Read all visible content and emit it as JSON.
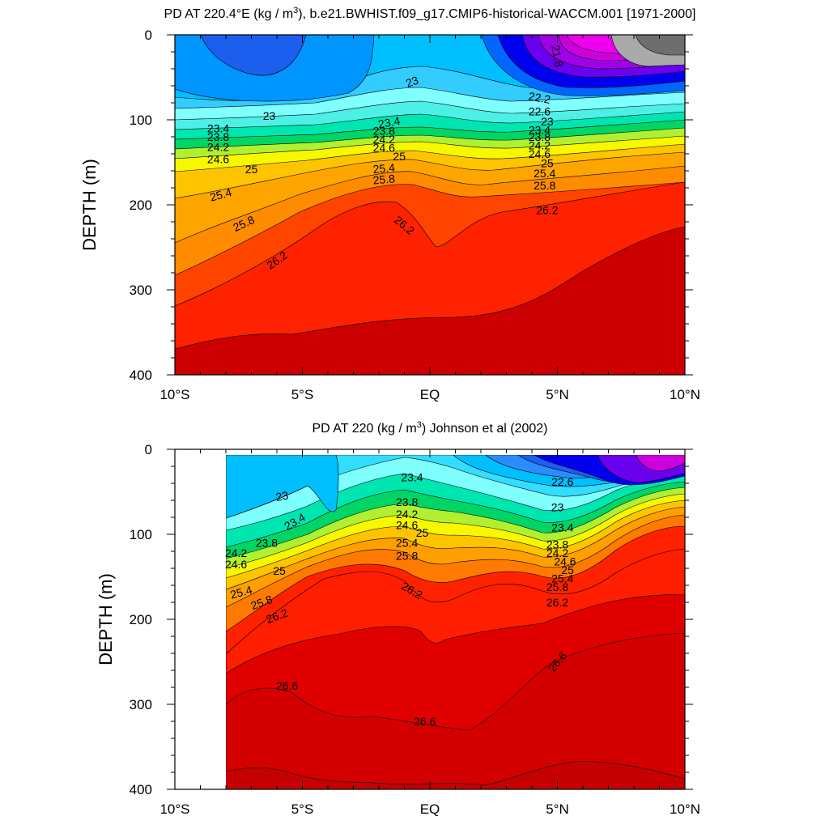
{
  "chart_data": [
    {
      "type": "contour",
      "title_main": "PD AT 220.4°E (kg / m",
      "title_sup": "3",
      "title_rest": "), b.e21.BWHIST.f09_g17.CMIP6-historical-WACCM.001 [1971-2000]",
      "ylabel": "DEPTH (m)",
      "xlabel": "",
      "x_tick_labels": [
        "10°S",
        "5°S",
        "EQ",
        "5°N",
        "10°N"
      ],
      "x_tick_values": [
        -10,
        -5,
        0,
        5,
        10
      ],
      "y_tick_labels": [
        "0",
        "100",
        "200",
        "300",
        "400"
      ],
      "y_tick_values": [
        0,
        100,
        200,
        300,
        400
      ],
      "xlim": [
        -10,
        10
      ],
      "ylim": [
        0,
        400
      ],
      "y_inverted": true,
      "data_xlim": [
        -10,
        10
      ],
      "contour_interval": 0.2,
      "palette": [
        "#a9a9a9",
        "#e000e0",
        "#9900e6",
        "#1c5eed",
        "#00bfff",
        "#80ffff",
        "#00d566",
        "#f7f700",
        "#ff9f00",
        "#ff2200",
        "#cc0000"
      ],
      "contour_labels": [
        {
          "text": "21.8",
          "x": 5.0,
          "y": 25,
          "rot": 80
        },
        {
          "text": "23",
          "x": -0.7,
          "y": 55,
          "rot": -20
        },
        {
          "text": "23",
          "x": -6.3,
          "y": 95,
          "rot": 0
        },
        {
          "text": "23.4",
          "x": -8.3,
          "y": 110,
          "rot": 0
        },
        {
          "text": "23.8",
          "x": -8.3,
          "y": 120,
          "rot": 0
        },
        {
          "text": "24.2",
          "x": -8.3,
          "y": 132,
          "rot": 0
        },
        {
          "text": "24.6",
          "x": -8.3,
          "y": 146,
          "rot": 0
        },
        {
          "text": "25",
          "x": -7.0,
          "y": 158,
          "rot": 0
        },
        {
          "text": "25.4",
          "x": -8.2,
          "y": 188,
          "rot": -15
        },
        {
          "text": "25.8",
          "x": -7.3,
          "y": 222,
          "rot": -25
        },
        {
          "text": "26.2",
          "x": -6.0,
          "y": 265,
          "rot": -35
        },
        {
          "text": "23.4",
          "x": -1.6,
          "y": 103,
          "rot": -10
        },
        {
          "text": "23.8",
          "x": -1.8,
          "y": 113,
          "rot": 0
        },
        {
          "text": "24.2",
          "x": -1.8,
          "y": 123,
          "rot": 0
        },
        {
          "text": "24.6",
          "x": -1.8,
          "y": 133,
          "rot": 0
        },
        {
          "text": "25",
          "x": -1.2,
          "y": 143,
          "rot": 0
        },
        {
          "text": "25.4",
          "x": -1.8,
          "y": 157,
          "rot": -5
        },
        {
          "text": "25.8",
          "x": -1.8,
          "y": 170,
          "rot": -5
        },
        {
          "text": "26.2",
          "x": -1.0,
          "y": 224,
          "rot": 40
        },
        {
          "text": "22.2",
          "x": 4.3,
          "y": 74,
          "rot": 10
        },
        {
          "text": "22.6",
          "x": 4.3,
          "y": 90,
          "rot": 0
        },
        {
          "text": "23",
          "x": 4.6,
          "y": 102,
          "rot": 0
        },
        {
          "text": "23.4",
          "x": 4.3,
          "y": 112,
          "rot": 0
        },
        {
          "text": "23.8",
          "x": 4.3,
          "y": 120,
          "rot": 0
        },
        {
          "text": "24.2",
          "x": 4.3,
          "y": 130,
          "rot": 0
        },
        {
          "text": "24.6",
          "x": 4.3,
          "y": 140,
          "rot": 0
        },
        {
          "text": "25",
          "x": 4.6,
          "y": 151,
          "rot": 0
        },
        {
          "text": "25.4",
          "x": 4.5,
          "y": 163,
          "rot": 0
        },
        {
          "text": "25.8",
          "x": 4.5,
          "y": 177,
          "rot": 0
        },
        {
          "text": "26.2",
          "x": 4.6,
          "y": 206,
          "rot": 0
        }
      ]
    },
    {
      "type": "contour",
      "title_main": "PD AT 220 (kg / m",
      "title_sup": "3",
      "title_rest": ") Johnson et al (2002)",
      "ylabel": "DEPTH (m)",
      "xlabel": "",
      "x_tick_labels": [
        "10°S",
        "5°S",
        "EQ",
        "5°N",
        "10°N"
      ],
      "x_tick_values": [
        -10,
        -5,
        0,
        5,
        10
      ],
      "y_tick_labels": [
        "0",
        "100",
        "200",
        "300",
        "400"
      ],
      "y_tick_values": [
        0,
        100,
        200,
        300,
        400
      ],
      "xlim": [
        -10,
        10
      ],
      "ylim": [
        0,
        400
      ],
      "y_inverted": true,
      "data_xlim": [
        -8,
        10
      ],
      "contour_interval": 0.2,
      "palette": [
        "#9900e6",
        "#1c5eed",
        "#00bfff",
        "#80ffff",
        "#00d566",
        "#f7f700",
        "#ff9f00",
        "#ff2200",
        "#cc0000"
      ],
      "contour_labels": [
        {
          "text": "23",
          "x": -5.8,
          "y": 55,
          "rot": -10
        },
        {
          "text": "23.4",
          "x": -5.3,
          "y": 85,
          "rot": -30
        },
        {
          "text": "23.8",
          "x": -6.4,
          "y": 110,
          "rot": 0
        },
        {
          "text": "24.2",
          "x": -7.6,
          "y": 122,
          "rot": 0
        },
        {
          "text": "24.6",
          "x": -7.6,
          "y": 135,
          "rot": 0
        },
        {
          "text": "25",
          "x": -5.9,
          "y": 143,
          "rot": 0
        },
        {
          "text": "25.4",
          "x": -7.4,
          "y": 168,
          "rot": -15
        },
        {
          "text": "25.8",
          "x": -6.6,
          "y": 180,
          "rot": -20
        },
        {
          "text": "26.2",
          "x": -6.0,
          "y": 196,
          "rot": -20
        },
        {
          "text": "26.6",
          "x": -5.6,
          "y": 278,
          "rot": 0
        },
        {
          "text": "23.4",
          "x": -0.7,
          "y": 33,
          "rot": 0
        },
        {
          "text": "23.8",
          "x": -0.9,
          "y": 62,
          "rot": 0
        },
        {
          "text": "24.2",
          "x": -0.9,
          "y": 76,
          "rot": 0
        },
        {
          "text": "24.6",
          "x": -0.9,
          "y": 89,
          "rot": 0
        },
        {
          "text": "25",
          "x": -0.3,
          "y": 98,
          "rot": 0
        },
        {
          "text": "25.4",
          "x": -0.9,
          "y": 110,
          "rot": 0
        },
        {
          "text": "25.8",
          "x": -0.9,
          "y": 125,
          "rot": 0
        },
        {
          "text": "26.2",
          "x": -0.7,
          "y": 166,
          "rot": 30
        },
        {
          "text": "26.6",
          "x": -0.2,
          "y": 320,
          "rot": 0
        },
        {
          "text": "22.6",
          "x": 5.2,
          "y": 38,
          "rot": 0
        },
        {
          "text": "23",
          "x": 5.0,
          "y": 68,
          "rot": 0
        },
        {
          "text": "23.4",
          "x": 5.2,
          "y": 92,
          "rot": 0
        },
        {
          "text": "23.8",
          "x": 5.0,
          "y": 112,
          "rot": 0
        },
        {
          "text": "24.2",
          "x": 5.0,
          "y": 122,
          "rot": 0
        },
        {
          "text": "24.6",
          "x": 5.3,
          "y": 132,
          "rot": 0
        },
        {
          "text": "25",
          "x": 5.4,
          "y": 142,
          "rot": 0
        },
        {
          "text": "25.4",
          "x": 5.2,
          "y": 152,
          "rot": 0
        },
        {
          "text": "25.8",
          "x": 5.0,
          "y": 162,
          "rot": 0
        },
        {
          "text": "26.2",
          "x": 5.0,
          "y": 180,
          "rot": 0
        },
        {
          "text": "26.6",
          "x": 5.0,
          "y": 250,
          "rot": -50
        }
      ]
    }
  ]
}
